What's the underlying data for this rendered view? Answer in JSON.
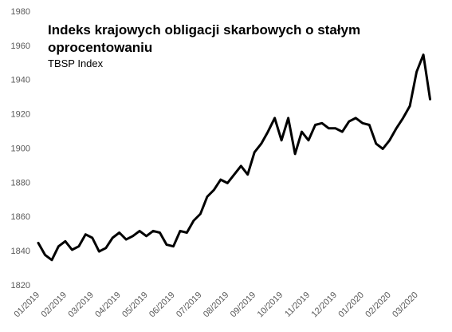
{
  "chart_data": {
    "type": "line",
    "title": "Indeks krajowych obligacji skarbowych o stałym oprocentowaniu",
    "subtitle": "TBSP Index",
    "categories": [
      "01/2019",
      null,
      null,
      null,
      "02/2019",
      null,
      null,
      null,
      "03/2019",
      null,
      null,
      null,
      "04/2019",
      null,
      null,
      null,
      "05/2019",
      null,
      null,
      null,
      "06/2019",
      null,
      null,
      null,
      "07/2019",
      null,
      null,
      null,
      "08/2019",
      null,
      null,
      null,
      "09/2019",
      null,
      null,
      null,
      "10/2019",
      null,
      null,
      null,
      "11/2019",
      null,
      null,
      null,
      "12/2019",
      null,
      null,
      null,
      "01/2020",
      null,
      null,
      null,
      "02/2020",
      null,
      null,
      null,
      "03/2020",
      null,
      null
    ],
    "series": [
      {
        "name": "TBSP Index",
        "color": "#000000",
        "values": [
          1845,
          1838,
          1835,
          1843,
          1846,
          1841,
          1843,
          1850,
          1848,
          1840,
          1842,
          1848,
          1851,
          1847,
          1849,
          1852,
          1849,
          1852,
          1851,
          1844,
          1843,
          1852,
          1851,
          1858,
          1862,
          1872,
          1876,
          1882,
          1880,
          1885,
          1890,
          1885,
          1898,
          1903,
          1910,
          1918,
          1905,
          1918,
          1897,
          1910,
          1905,
          1914,
          1915,
          1912,
          1912,
          1910,
          1916,
          1918,
          1915,
          1914,
          1903,
          1900,
          1905,
          1912,
          1918,
          1925,
          1945,
          1955,
          1929
        ]
      }
    ],
    "ylim": [
      1820,
      1980
    ],
    "yticks": [
      1820,
      1840,
      1860,
      1880,
      1900,
      1920,
      1940,
      1960,
      1980
    ]
  }
}
